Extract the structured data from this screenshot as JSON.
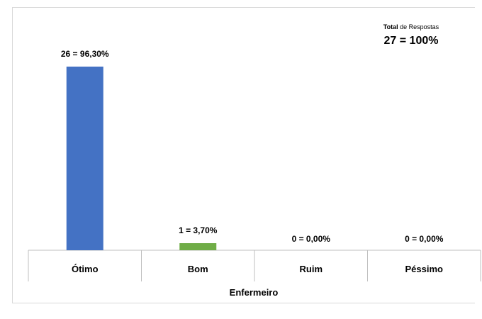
{
  "chart_data": {
    "type": "bar",
    "categories": [
      "Ótimo",
      "Bom",
      "Ruim",
      "Péssimo"
    ],
    "values": [
      26,
      1,
      0,
      0
    ],
    "percent_labels": [
      "26 = 96,30%",
      "1 = 3,70%",
      "0 = 0,00%",
      "0 = 0,00%"
    ],
    "bar_colors": [
      "#4472c4",
      "#70ad47",
      "#4472c4",
      "#4472c4"
    ],
    "xlabel": "Enfermeiro",
    "ylabel": "",
    "ylim": [
      0,
      27.6
    ],
    "grid": false,
    "legend": "none"
  },
  "total": {
    "label_bold": "Total",
    "label_rest": " de Respostas",
    "value": "27 = 100%"
  }
}
